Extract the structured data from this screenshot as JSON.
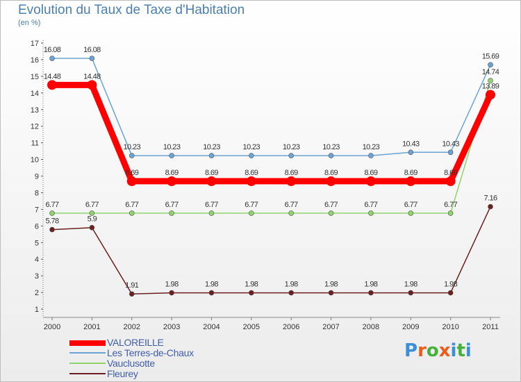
{
  "chart_data": {
    "type": "line",
    "title": "Evolution du Taux de Taxe d'Habitation",
    "subtitle": "(en %)",
    "xlabel": "",
    "ylabel": "(en %)",
    "ylim": [
      0.5,
      17
    ],
    "yticks": [
      1,
      2,
      3,
      4,
      5,
      6,
      7,
      8,
      9,
      10,
      11,
      12,
      13,
      14,
      15,
      16,
      17
    ],
    "x": [
      2000,
      2001,
      2002,
      2003,
      2004,
      2005,
      2006,
      2007,
      2008,
      2009,
      2010,
      2011
    ],
    "grid": false,
    "legend_position": "bottom-left",
    "series": [
      {
        "name": "Fleurey",
        "color": "#6b1f1f",
        "width": 1.5,
        "marker": 3.5,
        "values": [
          5.78,
          5.9,
          1.91,
          1.98,
          1.98,
          1.98,
          1.98,
          1.98,
          1.98,
          1.98,
          1.98,
          7.16
        ],
        "labels": [
          "5.78",
          "5.9",
          "1.91",
          "1.98",
          "1.98",
          "1.98",
          "1.98",
          "1.98",
          "1.98",
          "1.98",
          "1.98",
          "7.16"
        ]
      },
      {
        "name": "Vauclusotte",
        "color": "#8fd46b",
        "width": 1.5,
        "marker": 3.5,
        "values": [
          6.77,
          6.77,
          6.77,
          6.77,
          6.77,
          6.77,
          6.77,
          6.77,
          6.77,
          6.77,
          6.77,
          14.74
        ],
        "labels": [
          "6.77",
          "6.77",
          "6.77",
          "6.77",
          "6.77",
          "6.77",
          "6.77",
          "6.77",
          "6.77",
          "6.77",
          "6.77",
          "14.74"
        ]
      },
      {
        "name": "Les Terres-de-Chaux",
        "color": "#6aa3d4",
        "width": 1.5,
        "marker": 3.5,
        "values": [
          16.08,
          16.08,
          10.23,
          10.23,
          10.23,
          10.23,
          10.23,
          10.23,
          10.23,
          10.43,
          10.43,
          15.69
        ],
        "labels": [
          "16.08",
          "16.08",
          "10.23",
          "10.23",
          "10.23",
          "10.23",
          "10.23",
          "10.23",
          "10.23",
          "10.43",
          "10.43",
          "15.69"
        ]
      },
      {
        "name": "VALOREILLE",
        "color": "#ff0000",
        "width": 9,
        "marker": 7,
        "values": [
          14.48,
          14.48,
          8.69,
          8.69,
          8.69,
          8.69,
          8.69,
          8.69,
          8.69,
          8.69,
          8.69,
          13.89
        ],
        "labels": [
          "14.48",
          "14.48",
          "8.69",
          "8.69",
          "8.69",
          "8.69",
          "8.69",
          "8.69",
          "8.69",
          "8.69",
          "8.69",
          "13.89"
        ]
      }
    ]
  },
  "legend": [
    {
      "name": "VALOREILLE",
      "color": "#ff0000"
    },
    {
      "name": "Les Terres-de-Chaux",
      "color": "#6aa3d4"
    },
    {
      "name": "Vauclusotte",
      "color": "#8fd46b"
    },
    {
      "name": "Fleurey",
      "color": "#6b1f1f"
    }
  ],
  "logo": {
    "text": "Proxiti",
    "letters": [
      "P",
      "r",
      "o",
      "x",
      "i",
      "t",
      "i"
    ],
    "colors": [
      "#3b8fd9",
      "#e95c1b",
      "#46b03d",
      "#e95c1b",
      "#3b8fd9",
      "#46b03d",
      "#3b8fd9"
    ]
  }
}
